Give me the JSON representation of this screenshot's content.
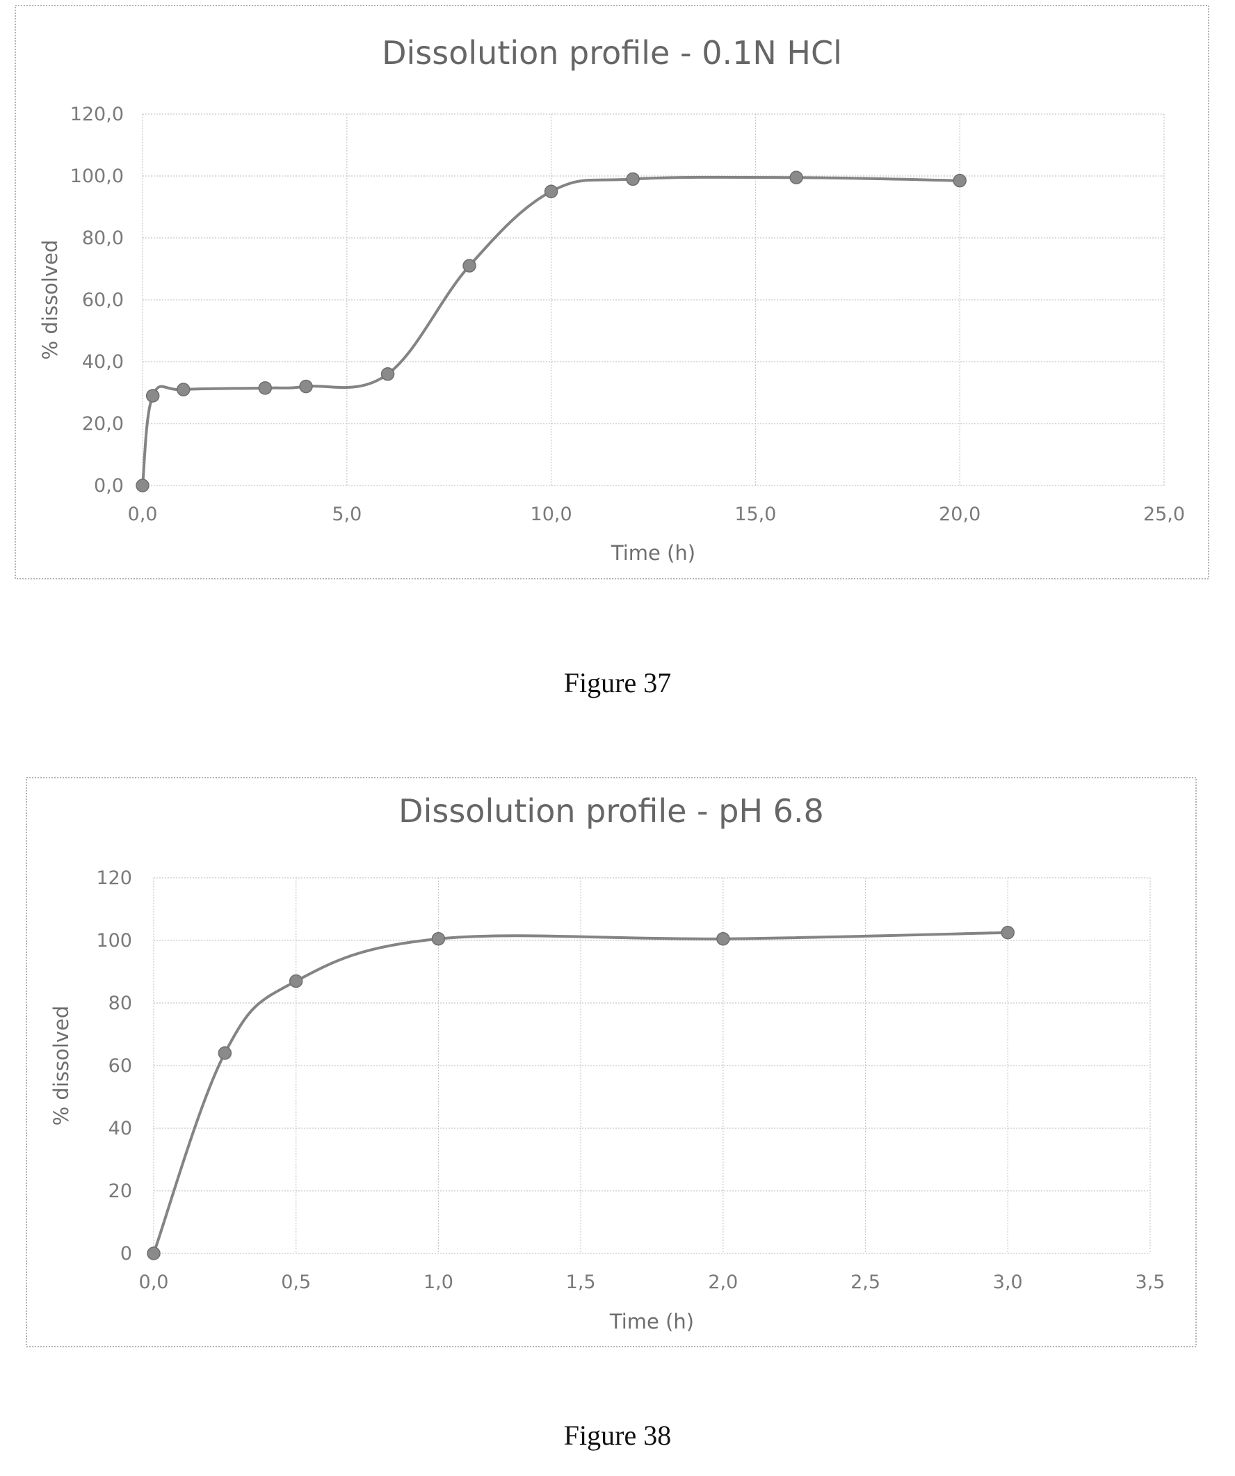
{
  "figures": [
    {
      "caption": "Figure 37"
    },
    {
      "caption": "Figure 38"
    }
  ],
  "chart_data": [
    {
      "type": "line",
      "title": "Dissolution profile - 0.1N HCl",
      "xlabel": "Time (h)",
      "ylabel": "% dissolved",
      "xlim": [
        0,
        25
      ],
      "ylim": [
        0,
        120
      ],
      "xticks": [
        "0,0",
        "5,0",
        "10,0",
        "15,0",
        "20,0",
        "25,0"
      ],
      "yticks": [
        "0,0",
        "20,0",
        "40,0",
        "60,0",
        "80,0",
        "100,0",
        "120,0"
      ],
      "grid": true,
      "smooth": true,
      "color": "#848484",
      "series": [
        {
          "x": [
            0,
            0.25,
            1,
            3,
            4,
            6,
            8,
            10,
            12,
            16,
            20
          ],
          "y": [
            0,
            29,
            31,
            31.5,
            32,
            36,
            71,
            95,
            99,
            99.5,
            98.5
          ]
        }
      ]
    },
    {
      "type": "line",
      "title": "Dissolution profile - pH 6.8",
      "xlabel": "Time (h)",
      "ylabel": "% dissolved",
      "xlim": [
        0,
        3.5
      ],
      "ylim": [
        0,
        120
      ],
      "xticks": [
        "0,0",
        "0,5",
        "1,0",
        "1,5",
        "2,0",
        "2,5",
        "3,0",
        "3,5"
      ],
      "yticks": [
        "0",
        "20",
        "40",
        "60",
        "80",
        "100",
        "120"
      ],
      "grid": true,
      "smooth": true,
      "color": "#848484",
      "series": [
        {
          "x": [
            0,
            0.25,
            0.5,
            1,
            2,
            3
          ],
          "y": [
            0,
            64,
            87,
            100.5,
            100.5,
            102.5
          ]
        }
      ]
    }
  ]
}
